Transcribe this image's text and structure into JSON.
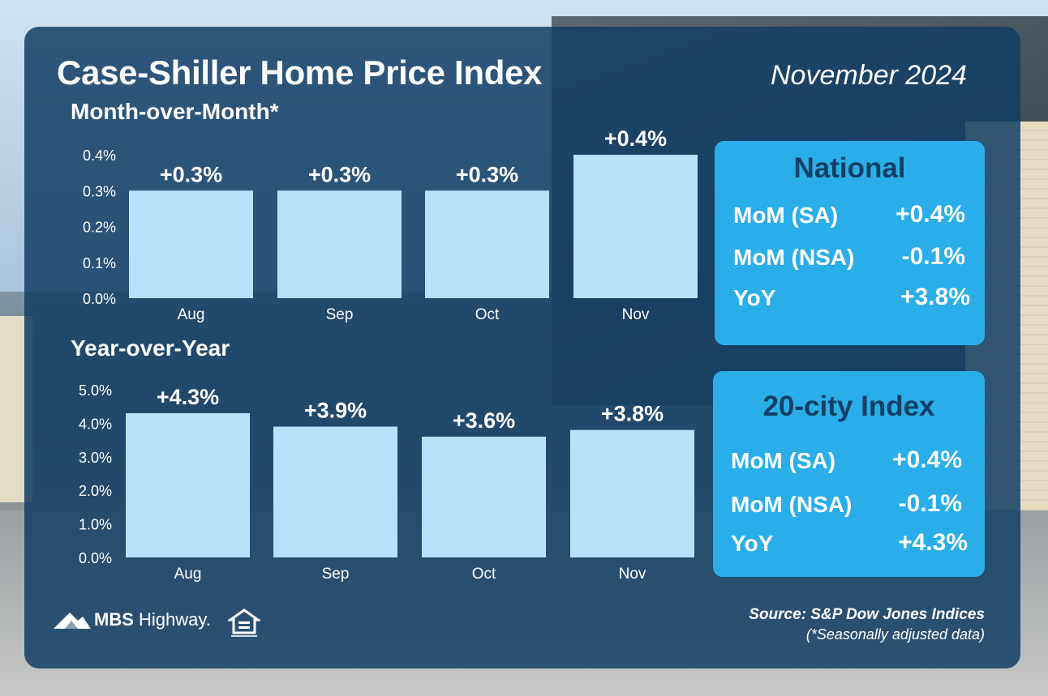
{
  "header": {
    "title": "Case-Shiller Home Price Index",
    "date": "November 2024"
  },
  "sections": {
    "mom_title": "Month-over-Month*",
    "yoy_title": "Year-over-Year"
  },
  "chart_data": [
    {
      "type": "bar",
      "title": "Month-over-Month*",
      "categories": [
        "Aug",
        "Sep",
        "Oct",
        "Nov"
      ],
      "values": [
        0.3,
        0.3,
        0.3,
        0.4
      ],
      "data_labels": [
        "+0.3%",
        "+0.3%",
        "+0.3%",
        "+0.4%"
      ],
      "yticks": [
        "0.0%",
        "0.1%",
        "0.2%",
        "0.3%",
        "0.4%"
      ],
      "ylim": [
        0,
        0.4
      ],
      "grid": false,
      "bar_color": "#b6e3fb"
    },
    {
      "type": "bar",
      "title": "Year-over-Year",
      "categories": [
        "Aug",
        "Sep",
        "Oct",
        "Nov"
      ],
      "values": [
        4.3,
        3.9,
        3.6,
        3.8
      ],
      "data_labels": [
        "+4.3%",
        "+3.9%",
        "+3.6%",
        "+3.8%"
      ],
      "yticks": [
        "0.0%",
        "1.0%",
        "2.0%",
        "3.0%",
        "4.0%",
        "5.0%"
      ],
      "ylim": [
        0,
        5
      ],
      "grid": false,
      "bar_color": "#b6e3fb"
    }
  ],
  "national": {
    "title": "National",
    "rows": [
      {
        "label": "MoM (SA)",
        "value": "+0.4%"
      },
      {
        "label": "MoM (NSA)",
        "value": "-0.1%"
      },
      {
        "label": "YoY",
        "value": "+3.8%"
      }
    ]
  },
  "city20": {
    "title": "20-city Index",
    "rows": [
      {
        "label": "MoM (SA)",
        "value": "+0.4%"
      },
      {
        "label": "MoM (NSA)",
        "value": "-0.1%"
      },
      {
        "label": "YoY",
        "value": "+4.3%"
      }
    ]
  },
  "footer": {
    "source": "Source: S&P Dow Jones Indices",
    "note": "(*Seasonally adjusted data)",
    "brand_bold": "MBS",
    "brand_rest": " Highway."
  },
  "colors": {
    "panel": "#133f65",
    "box": "#29aee9",
    "bar": "#b6e3fb",
    "box_title": "#133f65"
  },
  "icons": [
    "mbs-highway-logo-icon",
    "equal-housing-opportunity-icon"
  ]
}
